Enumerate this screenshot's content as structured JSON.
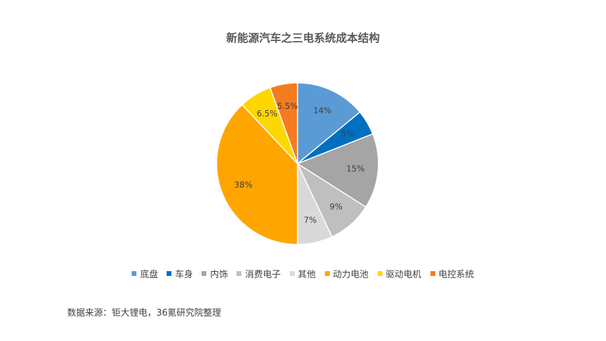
{
  "chart_data": {
    "type": "pie",
    "title": "新能源汽车之三电系统成本结构",
    "categories": [
      "底盘",
      "车身",
      "内饰",
      "消费电子",
      "其他",
      "动力电池",
      "驱动电机",
      "电控系统"
    ],
    "values": [
      14,
      5,
      15,
      9,
      7,
      38,
      6.5,
      5.5
    ],
    "labels": [
      "14%",
      "5%",
      "15%",
      "9%",
      "7%",
      "38%",
      "6.5%",
      "5.5%"
    ],
    "colors": [
      "#5B9BD5",
      "#0070C0",
      "#A5A5A5",
      "#BFBFBF",
      "#D9D9D9",
      "#FFA500",
      "#FFD700",
      "#F47B20"
    ],
    "legend_position": "bottom"
  },
  "source": "数据来源：钜大锂电，36氪研究院整理"
}
